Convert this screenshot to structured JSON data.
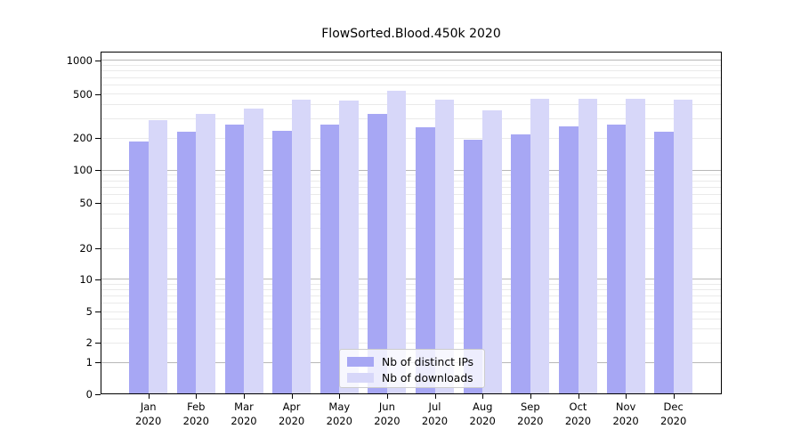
{
  "title": "FlowSorted.Blood.450k 2020",
  "legend": [
    {
      "label": "Nb of distinct IPs",
      "color": "#a7a7f4"
    },
    {
      "label": "Nb of downloads",
      "color": "#d7d7f9"
    }
  ],
  "chart_data": {
    "type": "bar",
    "title": "FlowSorted.Blood.450k 2020",
    "categories": [
      "Jan",
      "Feb",
      "Mar",
      "Apr",
      "May",
      "Jun",
      "Jul",
      "Aug",
      "Sep",
      "Oct",
      "Nov",
      "Dec"
    ],
    "x_year_label": "2020",
    "series": [
      {
        "name": "Nb of distinct IPs",
        "color": "#a7a7f4",
        "values": [
          185,
          230,
          267,
          233,
          266,
          328,
          250,
          192,
          215,
          254,
          266,
          228
        ]
      },
      {
        "name": "Nb of downloads",
        "color": "#d7d7f9",
        "values": [
          290,
          330,
          368,
          444,
          441,
          540,
          446,
          357,
          455,
          455,
          452,
          442
        ]
      }
    ],
    "yscale": "log-with-zero",
    "y_ticks": [
      0,
      1,
      2,
      5,
      10,
      20,
      50,
      100,
      200,
      500,
      1000
    ],
    "ylim": [
      0,
      1200
    ],
    "grid": true,
    "legend_position": "lower center"
  }
}
